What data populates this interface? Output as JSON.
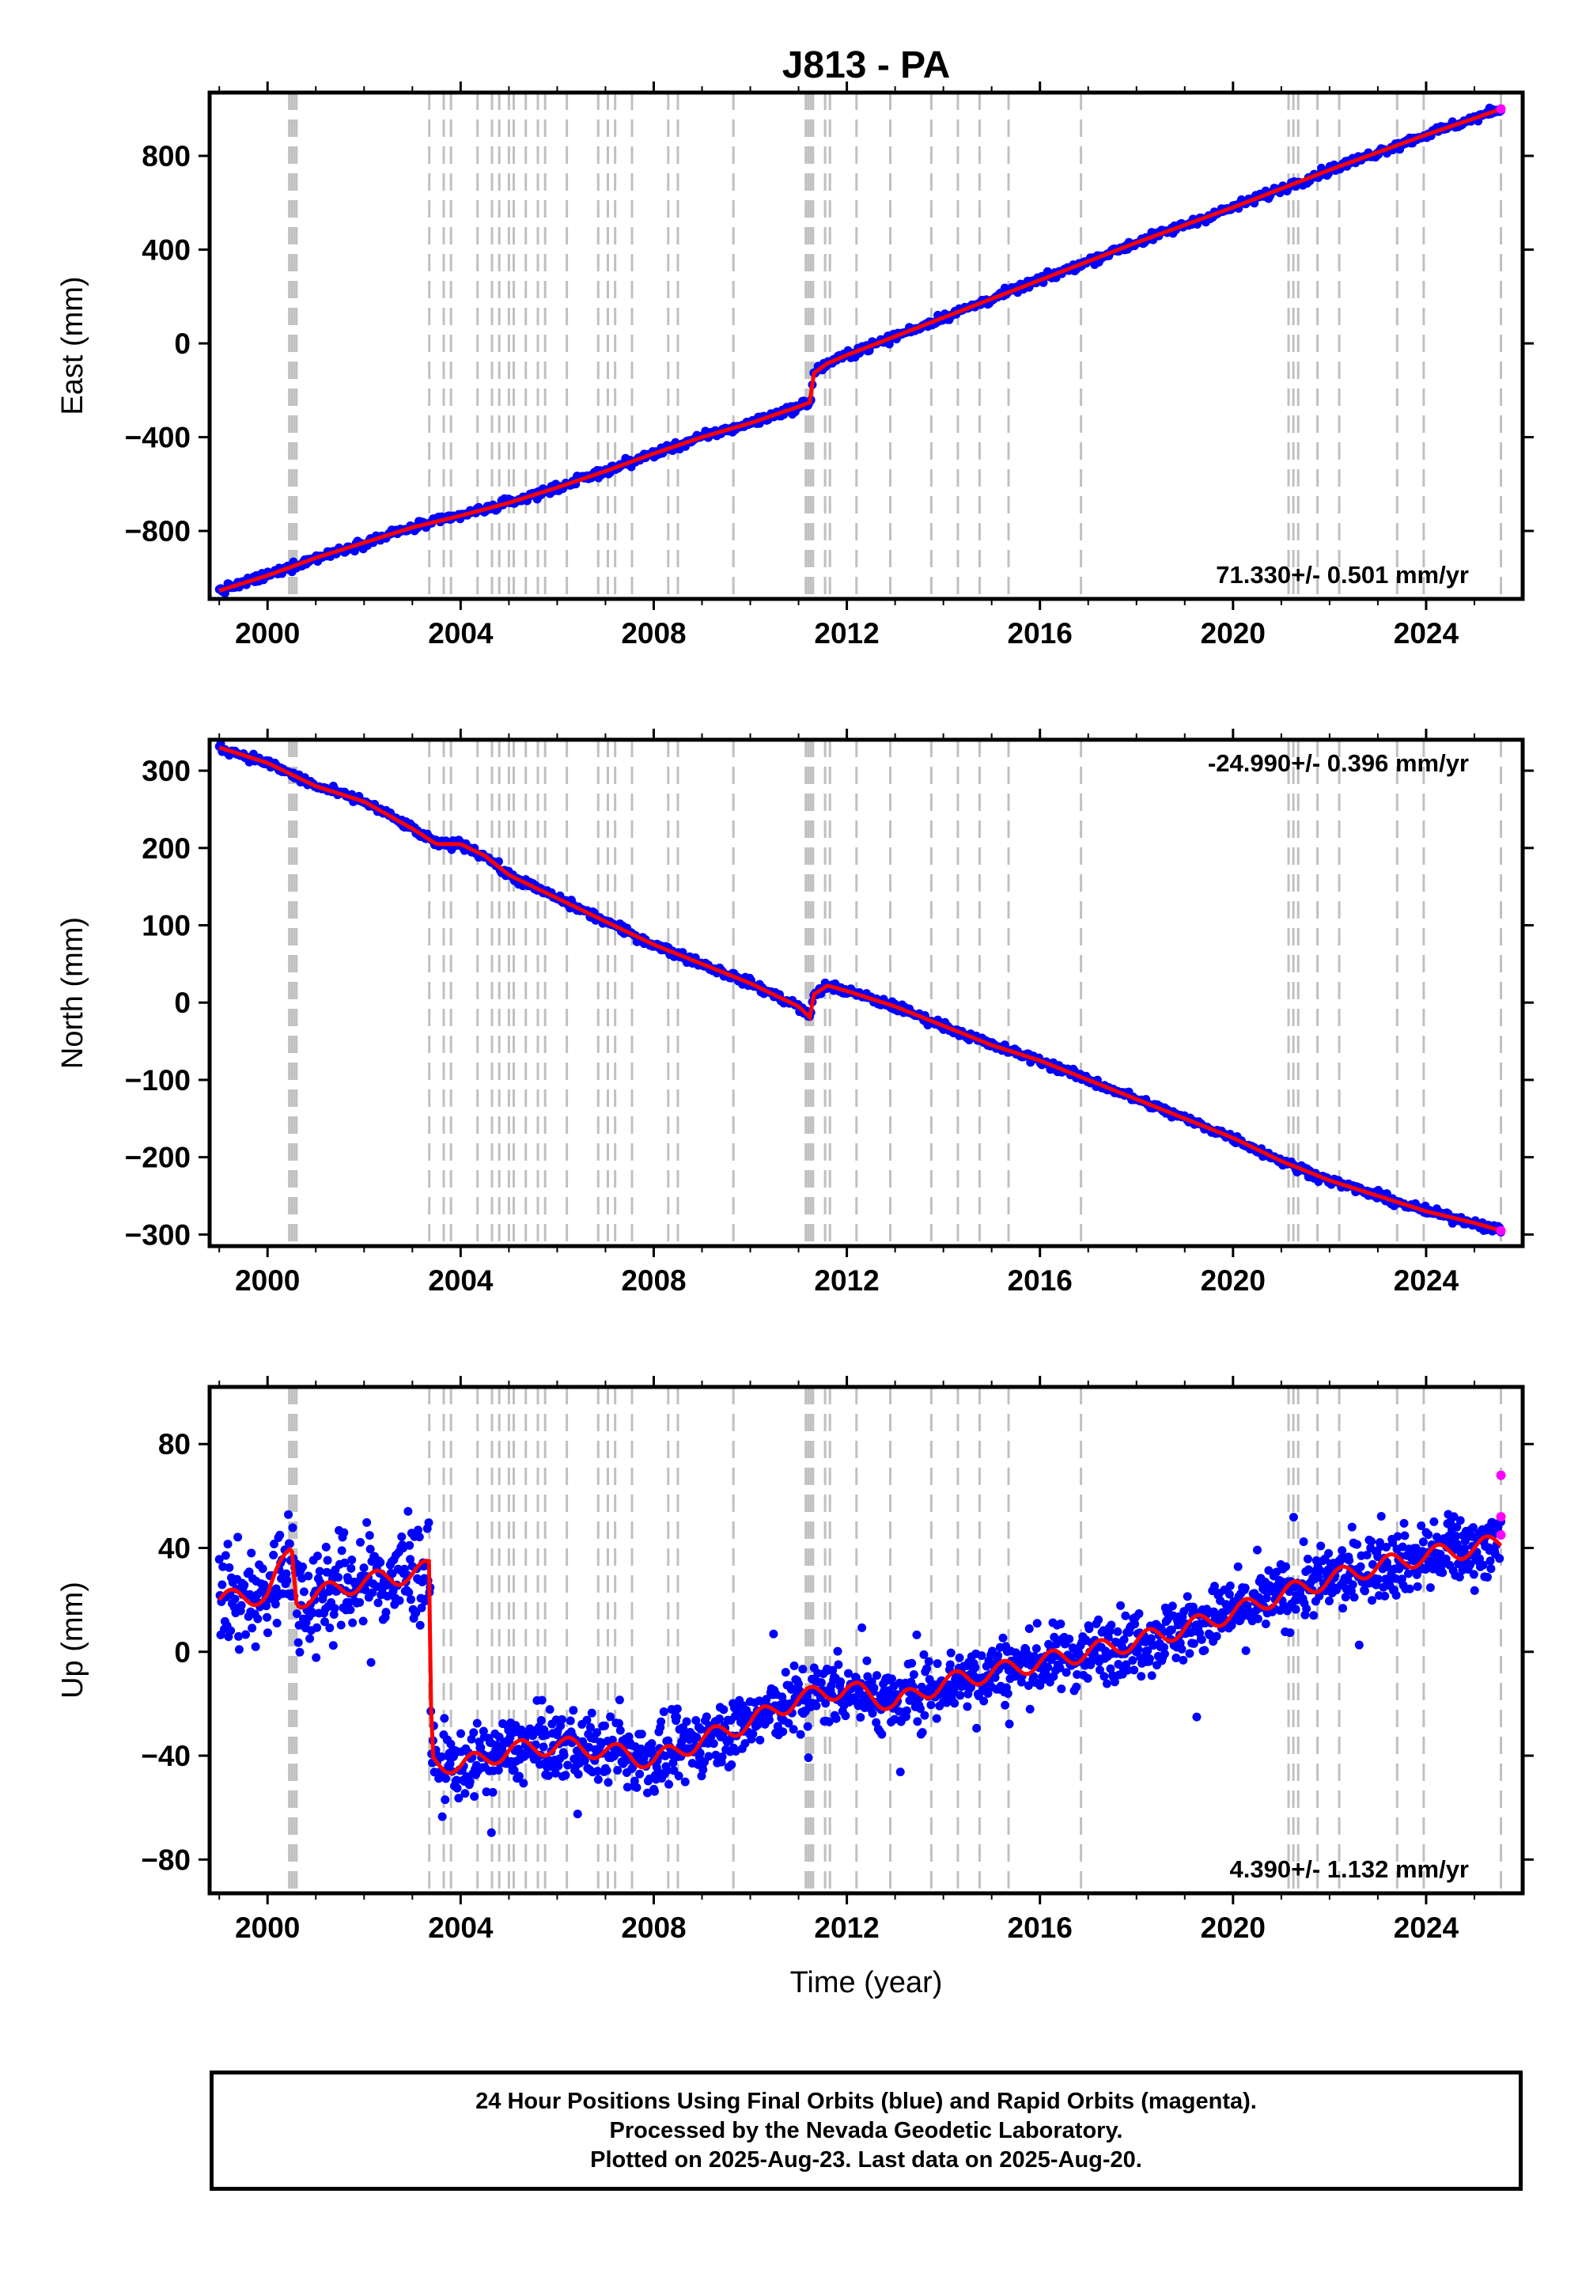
{
  "title": "J813 - PA",
  "xlabel": "Time (year)",
  "footer": {
    "line1": "24 Hour Positions Using Final Orbits (blue) and Rapid Orbits (magenta).",
    "line2": "Processed by the Nevada Geodetic Laboratory.",
    "line3": "Plotted on 2025-Aug-23. Last data on 2025-Aug-20."
  },
  "colors": {
    "final_orbits": "#0000ff",
    "rapid_orbits": "#ff00ff",
    "model_fit": "#ff0000",
    "event_lines": "#c0c0c0"
  },
  "chart_data": [
    {
      "type": "scatter",
      "name": "east",
      "ylabel": "East (mm)",
      "xlim": [
        1998.8,
        2026.0
      ],
      "ylim": [
        -1090,
        1070
      ],
      "xticks": [
        2000,
        2004,
        2008,
        2012,
        2016,
        2020,
        2024
      ],
      "yticks": [
        -800,
        -400,
        0,
        400,
        800
      ],
      "rate_label": "71.330+/- 0.501 mm/yr",
      "rate_label_position": "bottom-right",
      "series": [
        {
          "name": "Final Orbits",
          "x": [
            1999.0,
            2000.0,
            2001.0,
            2002.0,
            2003.0,
            2004.0,
            2005.0,
            2006.0,
            2007.0,
            2008.0,
            2009.0,
            2010.0,
            2011.0,
            2011.25,
            2011.3,
            2011.6,
            2012.0,
            2013.0,
            2014.0,
            2015.0,
            2016.0,
            2017.0,
            2018.0,
            2019.0,
            2020.0,
            2021.0,
            2022.0,
            2023.0,
            2024.0,
            2025.0,
            2025.55
          ],
          "y": [
            -1055,
            -990,
            -915,
            -850,
            -785,
            -735,
            -680,
            -615,
            -545,
            -470,
            -400,
            -340,
            -270,
            -250,
            -130,
            -85,
            -50,
            30,
            110,
            190,
            270,
            350,
            430,
            505,
            580,
            660,
            740,
            815,
            890,
            960,
            1000
          ]
        },
        {
          "name": "Rapid Orbits",
          "x": [
            2025.55
          ],
          "y": [
            1000
          ]
        }
      ]
    },
    {
      "type": "scatter",
      "name": "north",
      "ylabel": "North (mm)",
      "xlim": [
        1998.8,
        2026.0
      ],
      "ylim": [
        -315,
        340
      ],
      "xticks": [
        2000,
        2004,
        2008,
        2012,
        2016,
        2020,
        2024
      ],
      "yticks": [
        -300,
        -200,
        -100,
        0,
        100,
        200,
        300
      ],
      "rate_label": "-24.990+/- 0.396 mm/yr",
      "rate_label_position": "top-right",
      "series": [
        {
          "name": "Final Orbits",
          "x": [
            1999.0,
            2000.0,
            2001.0,
            2002.0,
            2003.0,
            2003.5,
            2004.0,
            2004.5,
            2005.0,
            2006.0,
            2007.0,
            2008.0,
            2009.0,
            2010.0,
            2011.0,
            2011.25,
            2011.3,
            2011.6,
            2012.0,
            2013.0,
            2014.0,
            2015.0,
            2016.0,
            2017.0,
            2018.0,
            2019.0,
            2020.0,
            2021.0,
            2022.0,
            2023.0,
            2024.0,
            2025.0,
            2025.55
          ],
          "y": [
            330,
            310,
            280,
            260,
            225,
            205,
            205,
            190,
            165,
            135,
            105,
            75,
            50,
            25,
            -5,
            -20,
            10,
            22,
            15,
            -5,
            -30,
            -55,
            -75,
            -100,
            -125,
            -150,
            -175,
            -205,
            -230,
            -250,
            -270,
            -285,
            -295
          ]
        },
        {
          "name": "Rapid Orbits",
          "x": [
            2025.55
          ],
          "y": [
            -295
          ]
        }
      ]
    },
    {
      "type": "scatter",
      "name": "up",
      "ylabel": "Up (mm)",
      "xlim": [
        1998.8,
        2026.0
      ],
      "ylim": [
        -93,
        102
      ],
      "xticks": [
        2000,
        2004,
        2008,
        2012,
        2016,
        2020,
        2024
      ],
      "yticks": [
        -80,
        -40,
        0,
        40,
        80
      ],
      "rate_label": "4.390+/- 1.132 mm/yr",
      "rate_label_position": "bottom-right",
      "series": [
        {
          "name": "Final Orbits",
          "x": [
            1999.0,
            2000.0,
            2000.5,
            2000.6,
            2001.0,
            2002.0,
            2003.0,
            2003.35,
            2003.4,
            2004.0,
            2005.0,
            2006.0,
            2007.0,
            2008.0,
            2009.0,
            2010.0,
            2011.0,
            2012.0,
            2013.0,
            2014.0,
            2015.0,
            2016.0,
            2017.0,
            2018.0,
            2019.0,
            2020.0,
            2021.0,
            2022.0,
            2023.0,
            2024.0,
            2025.0,
            2025.55
          ],
          "y": [
            20,
            22,
            40,
            20,
            22,
            27,
            30,
            32,
            -42,
            -44,
            -38,
            -36,
            -38,
            -42,
            -34,
            -27,
            -18,
            -14,
            -20,
            -12,
            -8,
            -4,
            0,
            4,
            9,
            15,
            22,
            28,
            33,
            37,
            40,
            42
          ]
        },
        {
          "name": "Rapid Orbits",
          "x": [
            2025.55,
            2025.55,
            2025.55
          ],
          "y": [
            68,
            52,
            45
          ]
        }
      ]
    }
  ],
  "event_lines": {
    "dense": [
      2000.45,
      2000.5,
      2000.55,
      2000.6,
      2011.15,
      2011.2,
      2011.25,
      2011.3
    ],
    "single": [
      2003.35,
      2003.65,
      2003.8,
      2004.35,
      2004.65,
      2004.8,
      2005.0,
      2005.1,
      2005.35,
      2005.6,
      2005.75,
      2006.2,
      2006.85,
      2007.05,
      2007.2,
      2007.55,
      2008.3,
      2008.5,
      2009.65,
      2011.55,
      2011.65,
      2012.2,
      2012.9,
      2013.75,
      2014.3,
      2014.75,
      2015.35,
      2016.85,
      2021.15,
      2021.25,
      2021.35,
      2021.75,
      2022.2,
      2023.4,
      2023.95,
      2025.55
    ]
  }
}
